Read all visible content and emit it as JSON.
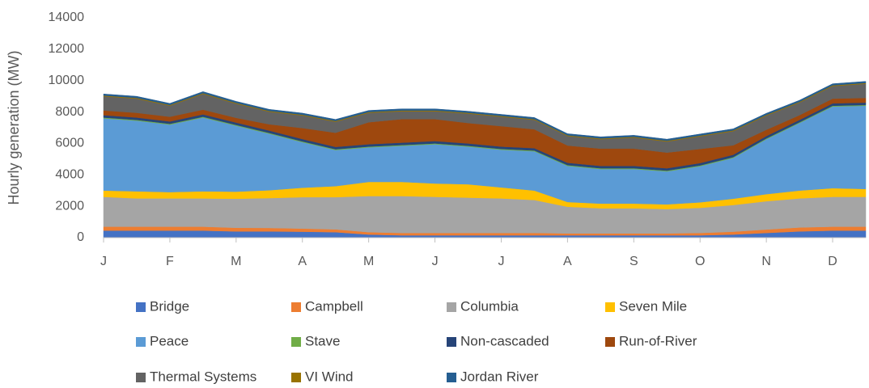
{
  "chart_data": {
    "type": "stacked_area",
    "y_label": "Hourly generation (MW)",
    "categories": [
      "J",
      null,
      "F",
      null,
      "M",
      null,
      "A",
      null,
      "M",
      null,
      "J",
      null,
      "J",
      null,
      "A",
      null,
      "S",
      null,
      "O",
      null,
      "N",
      null,
      "D",
      null
    ],
    "ylim": [
      0,
      14000
    ],
    "yticks": [
      0,
      2000,
      4000,
      6000,
      8000,
      10000,
      12000,
      14000
    ],
    "series": [
      {
        "name": "Bridge",
        "color": "#4472c4",
        "values": [
          450,
          450,
          450,
          450,
          400,
          400,
          380,
          350,
          200,
          150,
          150,
          150,
          150,
          150,
          150,
          150,
          150,
          150,
          150,
          200,
          300,
          400,
          450,
          450
        ]
      },
      {
        "name": "Campbell",
        "color": "#ed7d31",
        "values": [
          250,
          250,
          250,
          250,
          230,
          220,
          200,
          180,
          150,
          150,
          150,
          150,
          150,
          150,
          120,
          120,
          120,
          120,
          150,
          180,
          220,
          250,
          250,
          250
        ]
      },
      {
        "name": "Columbia",
        "color": "#a5a5a5",
        "values": [
          1900,
          1800,
          1800,
          1800,
          1850,
          1900,
          2000,
          2050,
          2300,
          2350,
          2300,
          2250,
          2200,
          2100,
          1700,
          1600,
          1600,
          1550,
          1600,
          1700,
          1800,
          1850,
          1900,
          1900
        ]
      },
      {
        "name": "Seven Mile",
        "color": "#ffc000",
        "values": [
          400,
          450,
          400,
          450,
          450,
          500,
          600,
          700,
          900,
          900,
          850,
          850,
          700,
          600,
          300,
          300,
          300,
          300,
          350,
          400,
          450,
          500,
          550,
          500
        ]
      },
      {
        "name": "Peace",
        "color": "#5b9bd5",
        "values": [
          4600,
          4500,
          4300,
          4700,
          4200,
          3600,
          2900,
          2300,
          2200,
          2300,
          2500,
          2400,
          2400,
          2500,
          2300,
          2200,
          2200,
          2100,
          2300,
          2600,
          3500,
          4300,
          5200,
          5300
        ]
      },
      {
        "name": "Stave",
        "color": "#70ad47",
        "values": [
          50,
          50,
          50,
          50,
          50,
          50,
          50,
          50,
          50,
          50,
          50,
          50,
          50,
          50,
          50,
          50,
          50,
          50,
          50,
          50,
          50,
          50,
          50,
          50
        ]
      },
      {
        "name": "Non-cascaded",
        "color": "#264478",
        "values": [
          150,
          150,
          150,
          150,
          150,
          150,
          150,
          150,
          150,
          150,
          150,
          150,
          150,
          150,
          150,
          150,
          150,
          150,
          150,
          150,
          150,
          150,
          150,
          150
        ]
      },
      {
        "name": "Run-of-River",
        "color": "#9e480e",
        "values": [
          300,
          300,
          300,
          300,
          300,
          400,
          700,
          900,
          1400,
          1500,
          1400,
          1300,
          1300,
          1200,
          1100,
          1100,
          1100,
          1000,
          900,
          600,
          400,
          300,
          300,
          300
        ]
      },
      {
        "name": "Thermal Systems",
        "color": "#636363",
        "values": [
          900,
          900,
          700,
          1000,
          900,
          800,
          800,
          700,
          600,
          500,
          500,
          600,
          600,
          600,
          600,
          600,
          700,
          700,
          800,
          900,
          900,
          800,
          800,
          900
        ]
      },
      {
        "name": "VI Wind",
        "color": "#997300",
        "values": [
          50,
          50,
          50,
          50,
          50,
          50,
          50,
          50,
          50,
          50,
          50,
          50,
          50,
          50,
          50,
          50,
          50,
          50,
          50,
          50,
          50,
          50,
          50,
          50
        ]
      },
      {
        "name": "Jordan River",
        "color": "#255e91",
        "values": [
          100,
          100,
          100,
          100,
          100,
          100,
          100,
          100,
          100,
          100,
          100,
          100,
          100,
          100,
          100,
          100,
          100,
          100,
          100,
          100,
          100,
          100,
          100,
          100
        ]
      }
    ]
  }
}
